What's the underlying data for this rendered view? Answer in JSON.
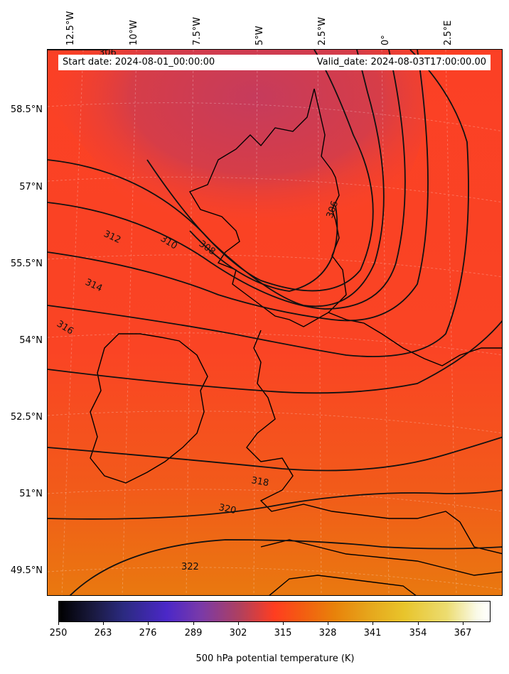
{
  "info": {
    "start_date": "Start date: 2024-08-01_00:00:00",
    "valid_date": "Valid_date: 2024-08-03T17:00:00.00"
  },
  "lon_labels": [
    "12.5°W",
    "10°W",
    "7.5°W",
    "5°W",
    "2.5°W",
    "0°",
    "2.5°E"
  ],
  "lat_labels": [
    "58.5°N",
    "57°N",
    "55.5°N",
    "54°N",
    "52.5°N",
    "51°N",
    "49.5°N"
  ],
  "contour_labels": [
    "306",
    "306",
    "308",
    "310",
    "312",
    "314",
    "316",
    "318",
    "320",
    "322"
  ],
  "colorbar": {
    "ticks": [
      "250",
      "263",
      "276",
      "289",
      "302",
      "315",
      "328",
      "341",
      "354",
      "367"
    ],
    "label": "500 hPa potential temperature (K)",
    "colormap": "CMRmap"
  },
  "colors": {
    "low": "#c23a5e",
    "mid": "#ff4426",
    "high": "#e8770f",
    "contour": "#111111"
  }
}
